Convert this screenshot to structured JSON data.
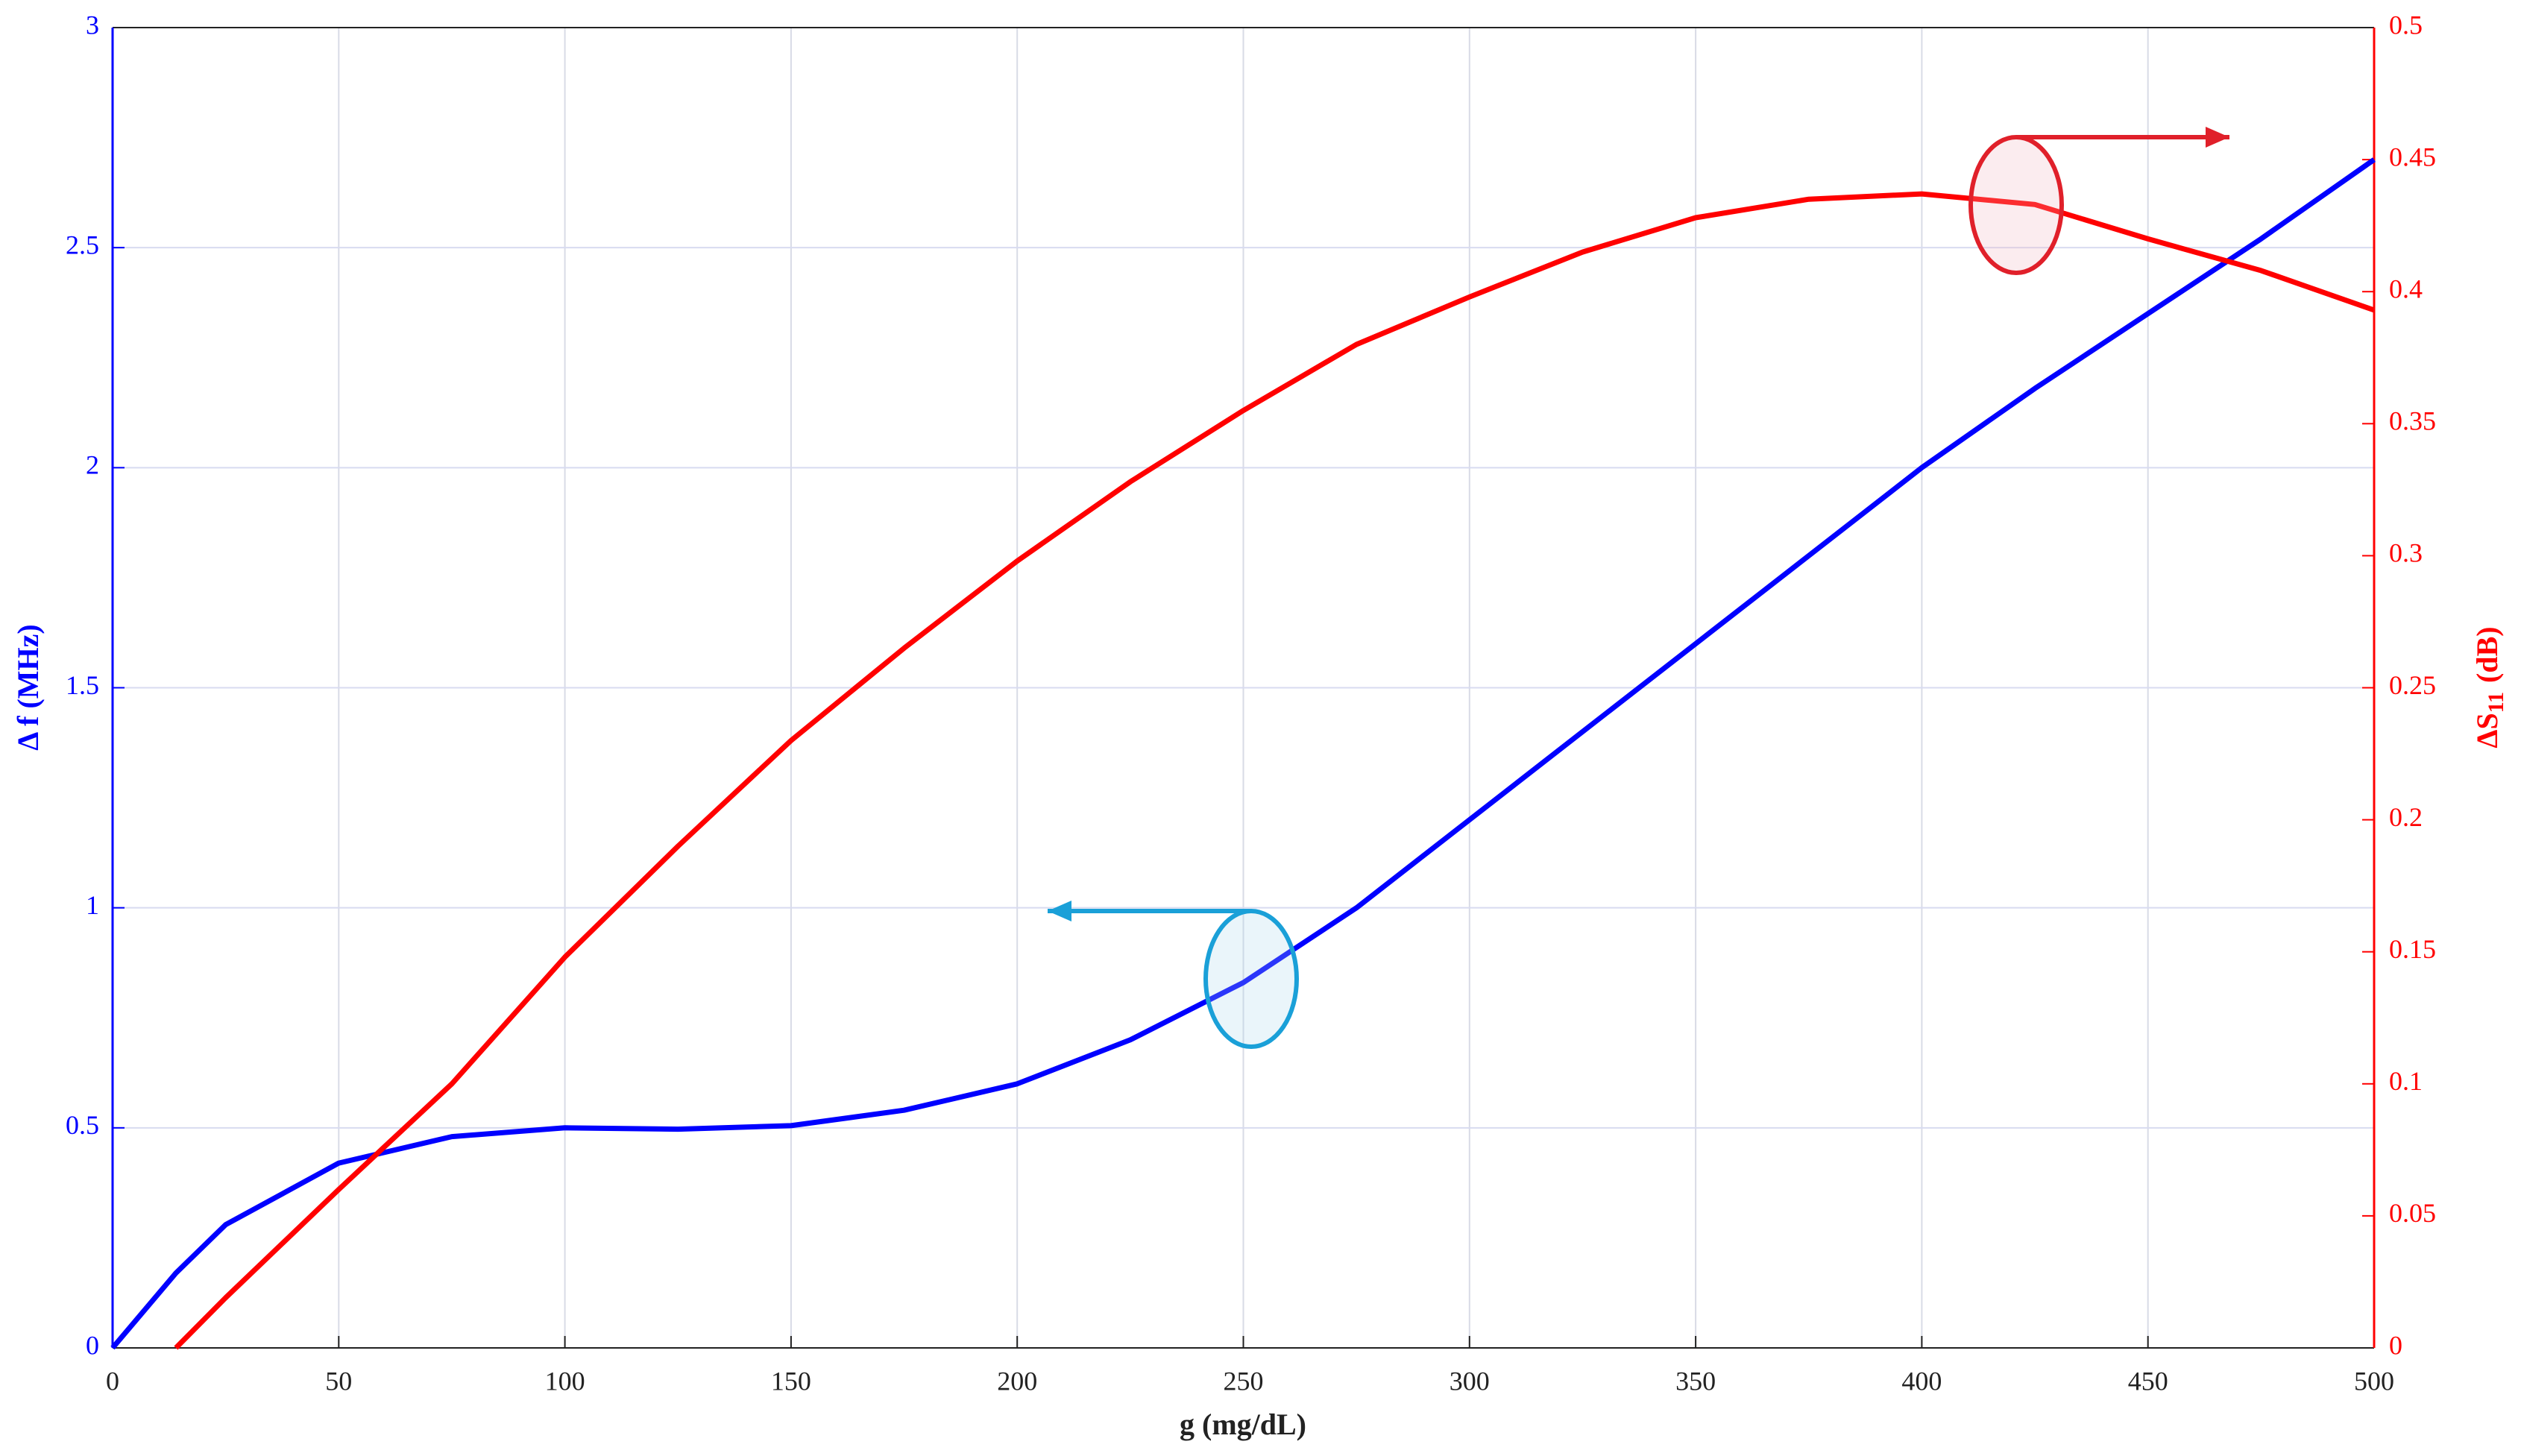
{
  "chart_data": {
    "type": "line",
    "xlabel": "g (mg/dL)",
    "ylabel": "Δ f (MHz)",
    "y2label": [
      "ΔS",
      "11",
      "(dB)"
    ],
    "x": [
      0,
      14,
      25,
      50,
      75,
      100,
      125,
      150,
      175,
      200,
      225,
      250,
      275,
      300,
      325,
      350,
      375,
      400,
      425,
      450,
      475,
      500
    ],
    "series": [
      {
        "name": "Δf",
        "color": "#0000ff",
        "values": [
          0,
          0.17,
          0.28,
          0.42,
          0.48,
          0.5,
          0.497,
          0.505,
          0.54,
          0.6,
          0.7,
          0.83,
          1.0,
          1.2,
          1.4,
          1.6,
          1.8,
          2.0,
          2.18,
          2.35,
          2.52,
          2.7
        ]
      },
      {
        "name": "ΔS11",
        "color": "#ff0000",
        "axis": "y2",
        "values": [
          null,
          0,
          0.019,
          0.06,
          0.1,
          0.148,
          0.19,
          0.23,
          0.265,
          0.298,
          0.328,
          0.355,
          0.38,
          0.398,
          0.415,
          0.428,
          0.435,
          0.437,
          0.433,
          0.42,
          0.408,
          0.393
        ]
      }
    ],
    "xlim": [
      0,
      500
    ],
    "xticks": [
      0,
      50,
      100,
      150,
      200,
      250,
      300,
      350,
      400,
      450,
      500
    ],
    "ylim": [
      0,
      3
    ],
    "yticks": [
      0,
      0.5,
      1,
      1.5,
      2,
      2.5,
      3
    ],
    "y2lim": [
      0,
      0.5
    ],
    "y2ticks": [
      0,
      0.05,
      0.1,
      0.15,
      0.2,
      0.25,
      0.3,
      0.35,
      0.4,
      0.45,
      0.5
    ],
    "grid": true
  }
}
